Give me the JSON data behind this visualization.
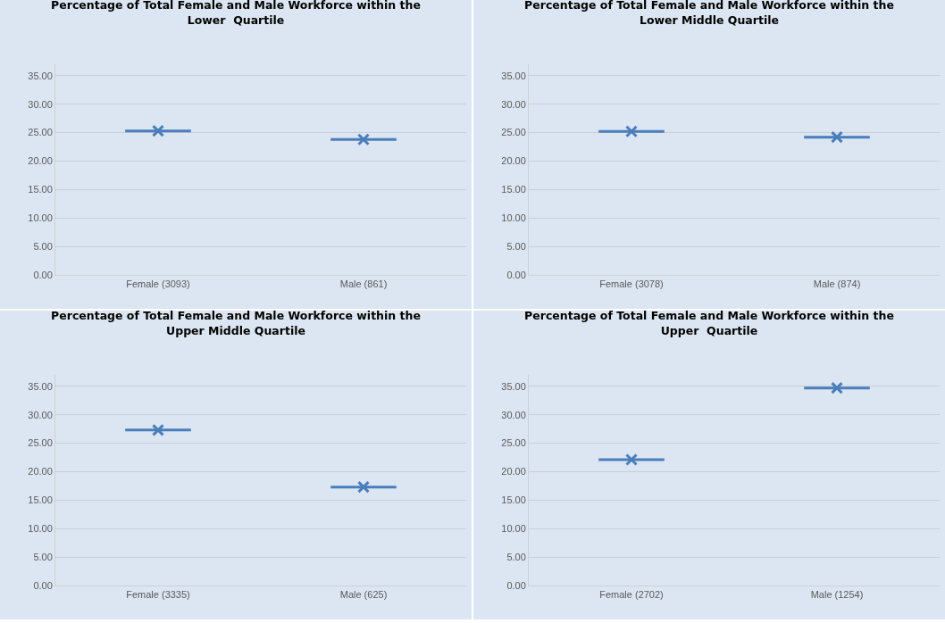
{
  "chart_data": [
    {
      "type": "box",
      "title": "Percentage of Total Female and Male Workforce within the Lower  Quartile",
      "categories": [
        "Female (3093)",
        "Male (861)"
      ],
      "color": "#4a7ebb",
      "marker": "cross",
      "grid": "y",
      "ylim": [
        0,
        37
      ],
      "yticks": [
        {
          "value": 0,
          "label": "0.00"
        },
        {
          "value": 5,
          "label": "5.00"
        },
        {
          "value": 10,
          "label": "10.00"
        },
        {
          "value": 15,
          "label": "15.00"
        },
        {
          "value": 20,
          "label": "20.00"
        },
        {
          "value": 25,
          "label": "25.00"
        },
        {
          "value": 30,
          "label": "30.00"
        },
        {
          "value": 35,
          "label": "35.00"
        }
      ],
      "boxes": [
        {
          "low": 25.3,
          "q1": 25.3,
          "median": 25.3,
          "q3": 25.3,
          "high": 25.3,
          "mean": 25.3
        },
        {
          "low": 23.8,
          "q1": 23.8,
          "median": 23.8,
          "q3": 23.8,
          "high": 23.8,
          "mean": 23.8
        }
      ]
    },
    {
      "type": "box",
      "title": "Percentage of Total Female and Male Workforce within the Lower Middle Quartile",
      "categories": [
        "Female (3078)",
        "Male (874)"
      ],
      "color": "#4a7ebb",
      "marker": "cross",
      "grid": "y",
      "ylim": [
        0,
        37
      ],
      "yticks": [
        {
          "value": 0,
          "label": "0.00"
        },
        {
          "value": 5,
          "label": "5.00"
        },
        {
          "value": 10,
          "label": "10.00"
        },
        {
          "value": 15,
          "label": "15.00"
        },
        {
          "value": 20,
          "label": "20.00"
        },
        {
          "value": 25,
          "label": "25.00"
        },
        {
          "value": 30,
          "label": "30.00"
        },
        {
          "value": 35,
          "label": "35.00"
        }
      ],
      "boxes": [
        {
          "low": 25.2,
          "q1": 25.2,
          "median": 25.2,
          "q3": 25.2,
          "high": 25.2,
          "mean": 25.2
        },
        {
          "low": 24.2,
          "q1": 24.2,
          "median": 24.2,
          "q3": 24.2,
          "high": 24.2,
          "mean": 24.2
        }
      ]
    },
    {
      "type": "box",
      "title": "Percentage of Total Female and Male Workforce within the Upper Middle Quartile",
      "categories": [
        "Female (3335)",
        "Male (625)"
      ],
      "color": "#4a7ebb",
      "marker": "cross",
      "grid": "y",
      "ylim": [
        0,
        37
      ],
      "yticks": [
        {
          "value": 0,
          "label": "0.00"
        },
        {
          "value": 5,
          "label": "5.00"
        },
        {
          "value": 10,
          "label": "10.00"
        },
        {
          "value": 15,
          "label": "15.00"
        },
        {
          "value": 20,
          "label": "20.00"
        },
        {
          "value": 25,
          "label": "25.00"
        },
        {
          "value": 30,
          "label": "30.00"
        },
        {
          "value": 35,
          "label": "35.00"
        }
      ],
      "boxes": [
        {
          "low": 27.3,
          "q1": 27.3,
          "median": 27.3,
          "q3": 27.3,
          "high": 27.3,
          "mean": 27.3
        },
        {
          "low": 17.3,
          "q1": 17.3,
          "median": 17.3,
          "q3": 17.3,
          "high": 17.3,
          "mean": 17.3
        }
      ]
    },
    {
      "type": "box",
      "title": "Percentage of Total Female and Male Workforce within the Upper  Quartile",
      "categories": [
        "Female (2702)",
        "Male (1254)"
      ],
      "color": "#4a7ebb",
      "marker": "cross",
      "grid": "y",
      "ylim": [
        0,
        37
      ],
      "yticks": [
        {
          "value": 0,
          "label": "0.00"
        },
        {
          "value": 5,
          "label": "5.00"
        },
        {
          "value": 10,
          "label": "10.00"
        },
        {
          "value": 15,
          "label": "15.00"
        },
        {
          "value": 20,
          "label": "20.00"
        },
        {
          "value": 25,
          "label": "25.00"
        },
        {
          "value": 30,
          "label": "30.00"
        },
        {
          "value": 35,
          "label": "35.00"
        }
      ],
      "boxes": [
        {
          "low": 22.1,
          "q1": 22.1,
          "median": 22.1,
          "q3": 22.1,
          "high": 22.1,
          "mean": 22.1
        },
        {
          "low": 34.7,
          "q1": 34.7,
          "median": 34.7,
          "q3": 34.7,
          "high": 34.7,
          "mean": 34.7
        }
      ]
    }
  ]
}
